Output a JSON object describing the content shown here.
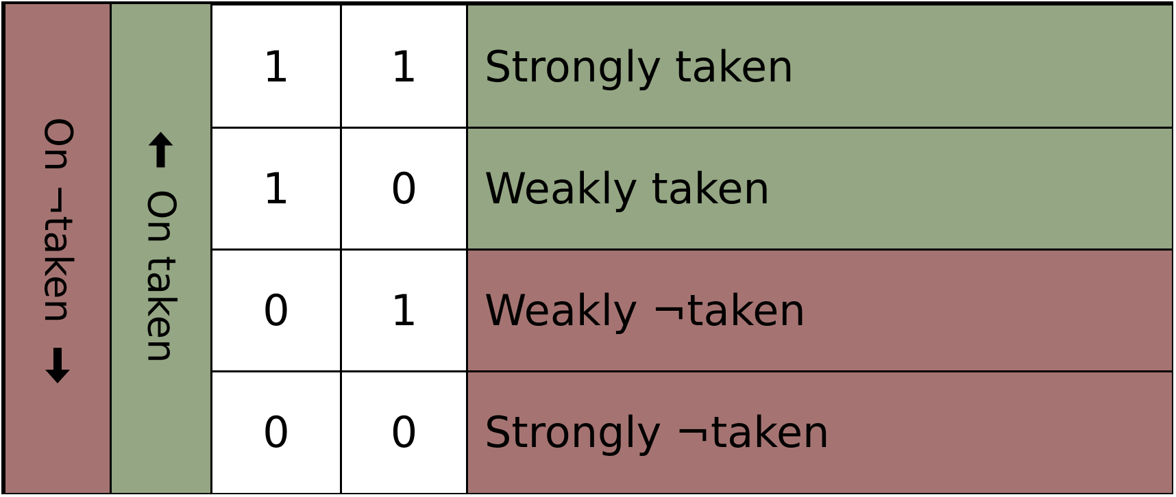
{
  "colors": {
    "taken": "#94a683",
    "not_taken": "#a57472",
    "border": "#000000",
    "bit_background": "#ffffff"
  },
  "left_labels": {
    "not_taken": "On ¬taken",
    "taken": "On taken"
  },
  "rows": [
    {
      "bit1": "1",
      "bit0": "1",
      "state": "Strongly taken",
      "group": "taken"
    },
    {
      "bit1": "1",
      "bit0": "0",
      "state": "Weakly taken",
      "group": "taken"
    },
    {
      "bit1": "0",
      "bit0": "1",
      "state": "Weakly ¬taken",
      "group": "not_taken"
    },
    {
      "bit1": "0",
      "bit0": "0",
      "state": "Strongly ¬taken",
      "group": "not_taken"
    }
  ]
}
